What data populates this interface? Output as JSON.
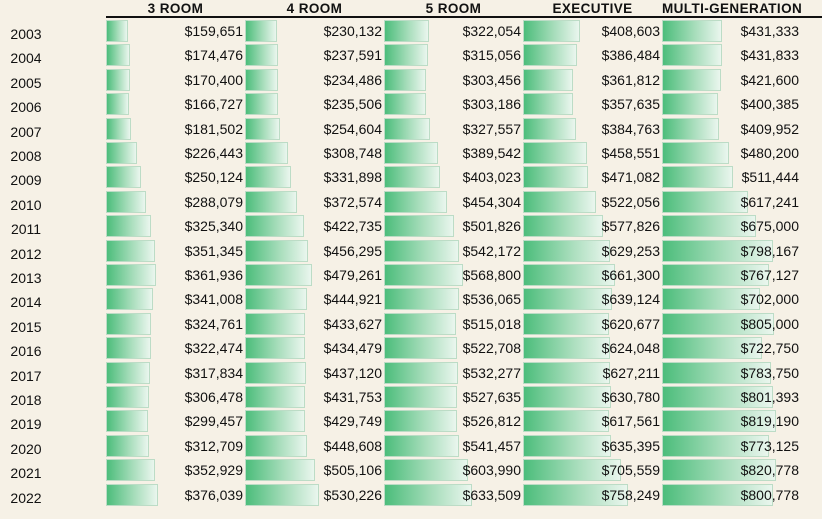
{
  "chart_data": {
    "type": "bar",
    "orientation": "horizontal",
    "value_prefix": "$",
    "categories": [
      "2003",
      "2004",
      "2005",
      "2006",
      "2007",
      "2008",
      "2009",
      "2010",
      "2011",
      "2012",
      "2013",
      "2014",
      "2015",
      "2016",
      "2017",
      "2018",
      "2019",
      "2020",
      "2021",
      "2022"
    ],
    "series": [
      {
        "name": "3 ROOM",
        "values": [
          159651,
          174476,
          170400,
          166727,
          181502,
          226443,
          250124,
          288079,
          325340,
          351345,
          361936,
          341008,
          324761,
          322474,
          317834,
          306478,
          299457,
          312709,
          352929,
          376039
        ]
      },
      {
        "name": "4 ROOM",
        "values": [
          230132,
          237591,
          234486,
          235506,
          254604,
          308748,
          331898,
          372574,
          422735,
          456295,
          479261,
          444921,
          433627,
          434479,
          437120,
          431753,
          429749,
          448608,
          505106,
          530226
        ]
      },
      {
        "name": "5 ROOM",
        "values": [
          322054,
          315056,
          303456,
          303186,
          327557,
          389542,
          403023,
          454304,
          501826,
          542172,
          568800,
          536065,
          515018,
          522708,
          532277,
          527635,
          526812,
          541457,
          603990,
          633509
        ]
      },
      {
        "name": "EXECUTIVE",
        "values": [
          408603,
          386484,
          361812,
          357635,
          384763,
          458551,
          471082,
          522056,
          577826,
          629253,
          661300,
          639124,
          620677,
          624048,
          627211,
          630780,
          617561,
          635395,
          705559,
          758249
        ]
      },
      {
        "name": "MULTI-GENERATION",
        "values": [
          431333,
          431833,
          421600,
          400385,
          409952,
          480200,
          511444,
          617241,
          675000,
          798167,
          767127,
          702000,
          805000,
          722750,
          783750,
          801393,
          819190,
          773125,
          820778,
          800778
        ]
      }
    ],
    "xlim": [
      0,
      1000000
    ],
    "grid": false,
    "legend": "none",
    "bar_color": "#4cbd7b"
  }
}
